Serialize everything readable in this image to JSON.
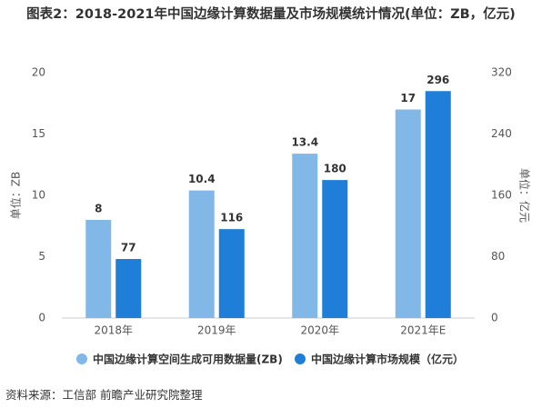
{
  "chart_data": {
    "type": "bar",
    "title": "图表2：2018-2021年中国边缘计算数据量及市场规模统计情况(单位：ZB，亿元)",
    "y_label": "单位：ZB",
    "y2_label": "单位：亿元",
    "categories": [
      "2018年",
      "2019年",
      "2020年",
      "2021年E"
    ],
    "series": [
      {
        "name": "中国边缘计算空间生成可用数据量(ZB)",
        "color": "#82b8e8",
        "values": [
          8,
          10.4,
          13.4,
          17
        ]
      },
      {
        "name": "中国边缘计算市场规模（亿元）",
        "color": "#1f7fd8",
        "values": [
          77,
          116,
          180,
          296
        ],
        "axis": "y2"
      }
    ],
    "ylim": [
      0,
      20
    ],
    "yticks": [
      0,
      5,
      10,
      15,
      20
    ],
    "y2lim": [
      0,
      320
    ],
    "y2ticks": [
      0,
      80,
      160,
      240,
      320
    ],
    "source": "资料来源：工信部 前瞻产业研究院整理"
  }
}
